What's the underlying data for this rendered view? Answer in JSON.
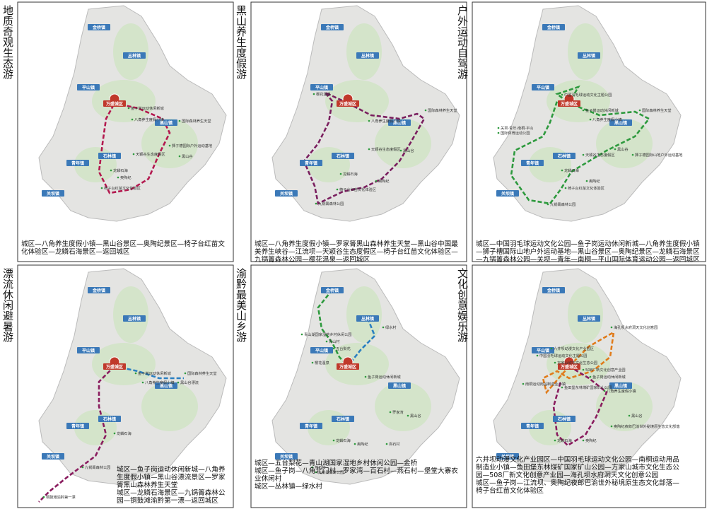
{
  "towns": [
    "金桥镇",
    "丛林镇",
    "平山镇",
    "万盛城区",
    "青年镇",
    "石林镇",
    "关坝镇",
    "黑山镇"
  ],
  "panels": [
    {
      "title": "地质奇观生态游",
      "sites": [
        "鱼子岗运动休闲新城",
        "八角养生度假小镇",
        "国际森林养生天堂",
        "天颖谷生态度假区",
        "狮子槽国际户外运动基地",
        "黑山谷",
        "龙鳞石海",
        "奥陶纪",
        "椅子台红苗文化体验区"
      ],
      "description": [
        "城区—八角养生度假小镇—黑山谷景区—奥陶纪景区—椅子台红苗文",
        "化体验区—龙鳞石海景区—返回城区"
      ]
    },
    {
      "title": "黑山养生度假游",
      "sites": [
        "樱花温泉",
        "国际森林养生天堂",
        "八角养生度假小镇",
        "天颖谷生态度假区",
        "黑山谷",
        "龙鳞石海",
        "奥陶纪",
        "椅子台红苗文化体验区",
        "九锅箐森林公园"
      ],
      "description": [
        "城区—八角养生度假小镇—罗家箐黑山森林养生天堂—黑山谷中国最",
        "美养生峡谷—江流坝—天颖谷生态度假区—椅子台红苗文化体验区—",
        "九锅箐森林公园—樱花温泉—返回城区"
      ]
    },
    {
      "title": "户外运动自驾游",
      "sites": [
        "中国羽毛球运动文化主题公园",
        "鱼子岗运动休闲新城",
        "国际森林养生天堂",
        "八角养生度假小镇",
        "关坝·青年·南桐·平山",
        "国际体育运动公园",
        "天颖谷生态度假区",
        "黑山谷",
        "狮子槽国际山地户外运动基地",
        "奥陶纪",
        "龙鳞石海",
        "椅子台红苗文化体验区",
        "九锅箐森林公园"
      ],
      "description": [
        "城区—中国羽毛球运动文化公园—鱼子岗运动休闲新城—八角养生度假小镇",
        "—狮子槽国际山地户外运动基地—黑山谷景区—奥陶纪景区—龙鳞石海景区",
        "—九锅箐森林公园—关坝—青年—南桐—平山国际体育运动公园—返回城区"
      ]
    },
    {
      "title": "漂流休闲避暑游",
      "sites": [
        "鱼子岗运动休闲新城",
        "国际森林养生天堂",
        "八角养生度假小镇",
        "黑山谷漂流",
        "龙鳞石海",
        "九锅箐森林公园",
        "铜鼓滩渝黔第一漂"
      ],
      "description": [
        "城区—鱼子岗运动休闲新城—八角养",
        "生度假小镇—黑山谷漂流景区—罗家",
        "箐黑山森林养生天堂",
        "城区—龙鳞石海景区—九锅箐森林公",
        "园—铜鼓滩渝黔第一漂—返回城区"
      ]
    },
    {
      "title": "渝黔最美山乡游",
      "sites": [
        "青山湖国家湿地乡村休闲公园",
        "青山村",
        "五台梨花",
        "绿水村",
        "樱花温泉",
        "鱼子岗运动休闲新城",
        "罗家湾",
        "黑山谷",
        "龙鳞石海",
        "奥陶纪",
        "百石村",
        "燕石村",
        "九锅箐森林公园"
      ],
      "description": [
        "城区—五台梨花—青山湖国家湿地乡村休闲公园—金桥",
        "城区—鱼子岗—八角北门村—罗家湾—百石村—燕石村—堡堂大寨农",
        "业休闲村",
        "城区—丛林镇—绿水村"
      ]
    },
    {
      "title": "文化创意娱乐游",
      "sites": [
        "海孔坝水府洞天文化创意园",
        "方家山城市文化生态公园",
        "中国羽毛球运动文化主题公园",
        "508厂新文化创意产业园",
        "六井坝动漫文化产业园区",
        "鱼子岗运动休闲新城",
        "南桐运动用品制造业小镇",
        "鱼田堡东林煤矿国家矿山公园",
        "八角养生度假小镇",
        "黑山谷",
        "奥陶纪夜郎巴渝世外秘境原生态文化部落",
        "龙鳞石海",
        "奥陶纪"
      ],
      "description": [
        "六井坝动漫文化产业园区—中国羽毛球运动文化公园—南桐运动用品",
        "制造业小镇—鱼田堡东林煤矿国家矿山公园—方家山城市文化生态公",
        "园—508厂新文化创意产业园—海孔坝水府洞天文化创意公园",
        "城区—鱼子岗—江流坝、奥陶纪夜郎巴渝世外秘境原生态文化部落—",
        "椅子台红苗文化体验区"
      ]
    }
  ]
}
